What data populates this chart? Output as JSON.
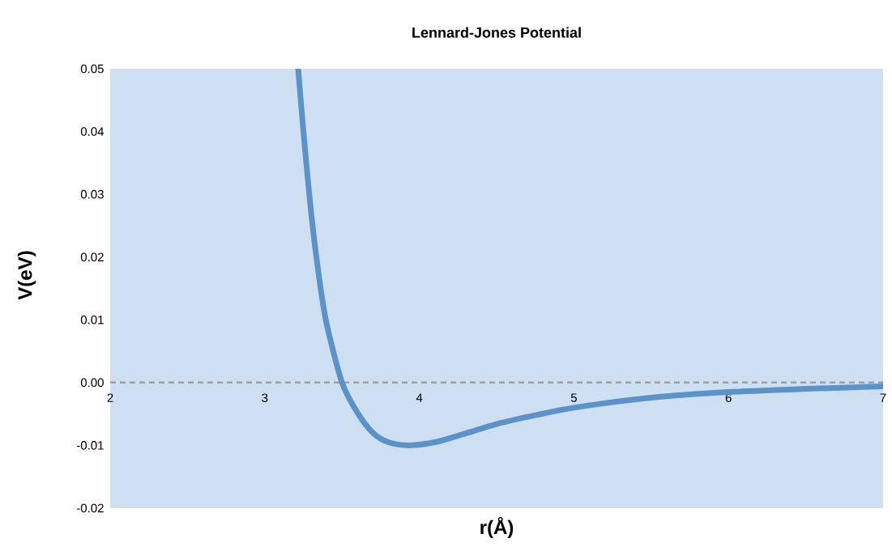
{
  "chart_data": {
    "type": "line",
    "title": "Lennard-Jones Potential",
    "xlabel": "r(Å)",
    "ylabel": "V(eV)",
    "x": [
      3.216,
      3.25,
      3.3,
      3.35,
      3.4,
      3.5,
      3.6,
      3.7,
      3.8,
      3.93,
      4.1,
      4.3,
      4.5,
      4.75,
      5.0,
      5.5,
      6.0,
      6.5,
      7.0
    ],
    "series": [
      {
        "color": "#5b93c9",
        "values": [
          0.05,
          0.04,
          0.027,
          0.017,
          0.0094,
          0.0,
          -0.0048,
          -0.008,
          -0.0095,
          -0.01,
          -0.0095,
          -0.0081,
          -0.0066,
          -0.0052,
          -0.004,
          -0.0024,
          -0.0015,
          -0.001,
          -0.0006
        ]
      }
    ],
    "xlim": [
      2,
      7
    ],
    "ylim": [
      -0.02,
      0.05
    ],
    "xticks": [
      2,
      3,
      4,
      5,
      6,
      7
    ],
    "yticks": [
      -0.02,
      -0.01,
      {
        "value": 0,
        "label": "0.00"
      },
      0.01,
      0.02,
      0.03,
      0.04,
      0.05
    ],
    "ref_lines": [
      {
        "axis": "y",
        "value": 0,
        "color": "#a0a0a0",
        "line_style": "dashed"
      }
    ],
    "line_style": "solid",
    "grid": false
  }
}
